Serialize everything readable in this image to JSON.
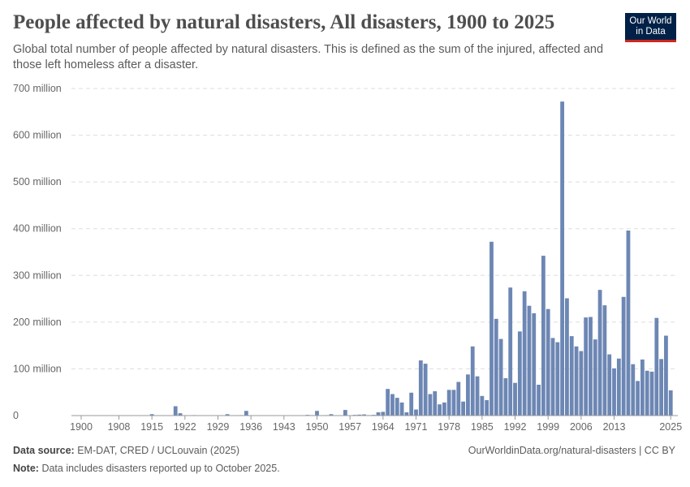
{
  "header": {
    "title": "People affected by natural disasters, All disasters, 1900 to 2025",
    "subtitle": "Global total number of people affected by natural disasters. This is defined as the sum of the injured, affected and those left homeless after a disaster.",
    "logo": "Our World in Data"
  },
  "footer": {
    "source_label": "Data source:",
    "source": "EM-DAT, CRED / UCLouvain (2025)",
    "url": "OurWorldinData.org/natural-disasters | CC BY",
    "note_label": "Note:",
    "note": "Data includes disasters reported up to October 2025."
  },
  "chart_data": {
    "type": "bar",
    "title": "People affected by natural disasters, All disasters, 1900 to 2025",
    "xlabel": "",
    "ylabel": "",
    "unit": "million",
    "ylim": [
      0,
      700
    ],
    "grid": true,
    "color": "#6d87b4",
    "y_ticks": [
      "0",
      "100 million",
      "200 million",
      "300 million",
      "400 million",
      "500 million",
      "600 million",
      "700 million"
    ],
    "x_ticks": [
      "1900",
      "1908",
      "1915",
      "1922",
      "1929",
      "1936",
      "1943",
      "1950",
      "1957",
      "1964",
      "1971",
      "1978",
      "1985",
      "1992",
      "1999",
      "2006",
      "2013",
      "2025"
    ],
    "x_start": 1900,
    "values": [
      0.2,
      0.1,
      0.3,
      0.2,
      0.1,
      0.5,
      0.2,
      0.3,
      0.2,
      0.4,
      0.3,
      0.6,
      0.5,
      0.2,
      0.3,
      3,
      0.5,
      0.2,
      0.4,
      0.8,
      20,
      5,
      0.5,
      0.3,
      1,
      0.2,
      0.3,
      0.5,
      0.8,
      0.3,
      0.5,
      3,
      0.6,
      0.4,
      1,
      10,
      0.5,
      0.3,
      0.6,
      0.4,
      0.3,
      0.5,
      0.8,
      0.5,
      0.4,
      0.3,
      0.6,
      0.5,
      1.5,
      1,
      10,
      0.8,
      1,
      3,
      0.8,
      0.6,
      12,
      0.5,
      1.5,
      2,
      2.5,
      1,
      1.5,
      7,
      8,
      57,
      46,
      38,
      28,
      7,
      49,
      13,
      118,
      111,
      46,
      52,
      24,
      28,
      55,
      55,
      72,
      30,
      88,
      148,
      84,
      42,
      33,
      372,
      207,
      164,
      80,
      274,
      70,
      180,
      266,
      235,
      219,
      66,
      342,
      228,
      166,
      157,
      672,
      251,
      170,
      148,
      138,
      210,
      211,
      163,
      269,
      236,
      131,
      101,
      122,
      254,
      396,
      110,
      74,
      120,
      96,
      94,
      209,
      121,
      171,
      54
    ]
  }
}
